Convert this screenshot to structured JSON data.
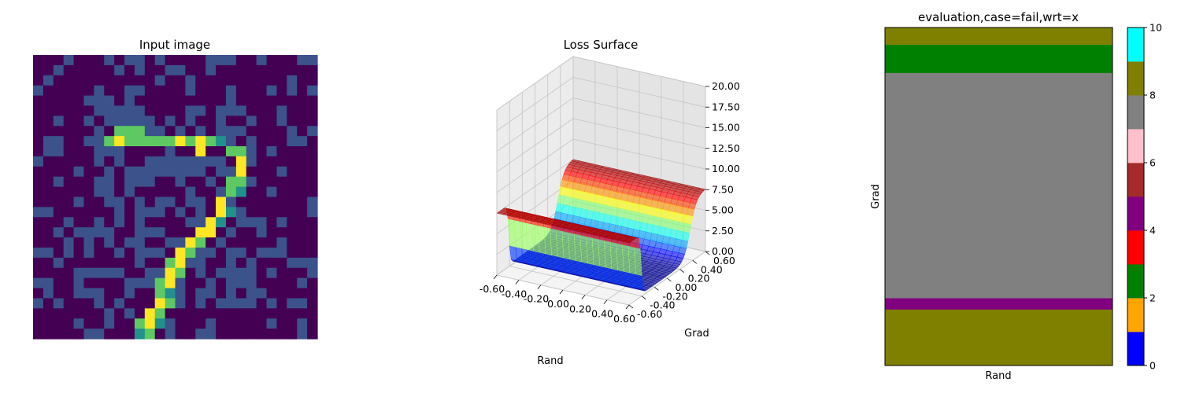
{
  "chart_data": [
    {
      "type": "heatmap",
      "title": "Input image",
      "colormap": "viridis",
      "rows": 28,
      "cols": 28,
      "axes_visible": false,
      "pixel_pattern": "noisy handwritten digit 7",
      "value_range": [
        0,
        1
      ]
    },
    {
      "type": "surface",
      "title": "Loss Surface",
      "xlabel": "Rand",
      "ylabel": "Grad",
      "xticks": [
        "-0.60",
        "-0.40",
        "-0.20",
        "0.00",
        "0.20",
        "0.40",
        "0.60"
      ],
      "yticks": [
        "-0.60",
        "-0.40",
        "-0.20",
        "0.00",
        "0.20",
        "0.40",
        "0.60"
      ],
      "zticks": [
        "0.00",
        "2.50",
        "5.00",
        "7.50",
        "10.00",
        "12.50",
        "15.00",
        "17.50",
        "20.00"
      ],
      "xlim": [
        -0.6,
        0.6
      ],
      "ylim": [
        -0.6,
        0.6
      ],
      "zlim": [
        0,
        20
      ],
      "colormap": "jet",
      "grid": true,
      "shape": "step along Grad: plateau ~7.5 for Grad < -0.40, valley ~0.3 for -0.40..0.35, rise to ~7.5 beyond 0.35"
    },
    {
      "type": "heatmap",
      "title": "evaluation,case=fail,wrt=x",
      "xlabel": "Rand",
      "ylabel": "Grad",
      "colorbar": {
        "range": [
          0,
          10
        ],
        "ticks": [
          "0",
          "2",
          "4",
          "6",
          "8",
          "10"
        ],
        "colors": [
          "#0000ff",
          "#ffa500",
          "#008000",
          "#ff0000",
          "#800080",
          "#a52a2a",
          "#ffc0cb",
          "#808080",
          "#808000",
          "#00ffff"
        ]
      },
      "bands": [
        {
          "from_grad": -0.6,
          "to_grad": -0.4,
          "value": 8.5,
          "color": "#808000"
        },
        {
          "from_grad": -0.4,
          "to_grad": -0.36,
          "value": 4.5,
          "color": "#800080"
        },
        {
          "from_grad": -0.36,
          "to_grad": 0.44,
          "value": 7.5,
          "color": "#808080"
        },
        {
          "from_grad": 0.44,
          "to_grad": 0.54,
          "value": 2.5,
          "color": "#008000"
        },
        {
          "from_grad": 0.54,
          "to_grad": 0.6,
          "value": 8.5,
          "color": "#808000"
        }
      ]
    }
  ]
}
